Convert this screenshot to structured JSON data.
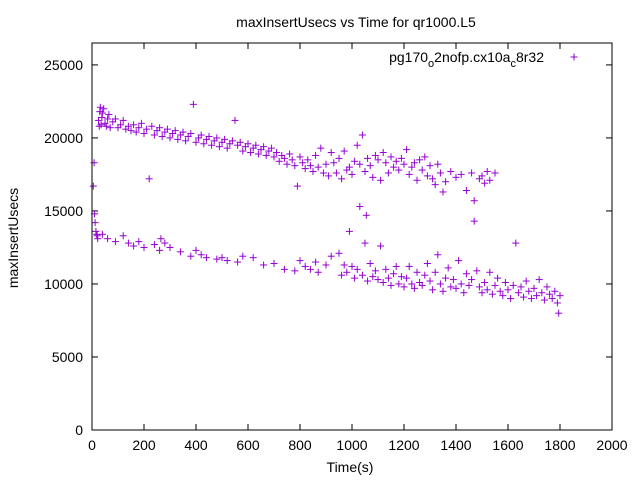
{
  "chart_data": {
    "type": "scatter",
    "title": "maxInsertUsecs vs Time for qr1000.L5",
    "xlabel": "Time(s)",
    "ylabel": "maxInsertUsecs",
    "xlim": [
      0,
      2000
    ],
    "ylim": [
      0,
      26500
    ],
    "x_ticks": [
      "0",
      "200",
      "400",
      "600",
      "800",
      "1000",
      "1200",
      "1400",
      "1600",
      "1800",
      "2000"
    ],
    "y_ticks": [
      "0",
      "5000",
      "10000",
      "15000",
      "20000",
      "25000"
    ],
    "grid": false,
    "legend_position": "top-right",
    "series": [
      {
        "name": "pg170_o2nofp.cx10a_c8r32",
        "legend_parts": {
          "a": "pg170",
          "b": "o",
          "c": "2nofp.cx10a",
          "d": "c",
          "e": "8r32"
        },
        "color": "#9400d3",
        "marker": "plus",
        "points": [
          [
            5,
            16700
          ],
          [
            8,
            18300
          ],
          [
            10,
            14800
          ],
          [
            12,
            14200
          ],
          [
            15,
            13600
          ],
          [
            18,
            13400
          ],
          [
            20,
            13300
          ],
          [
            22,
            13100
          ],
          [
            25,
            21200
          ],
          [
            28,
            20800
          ],
          [
            30,
            21800
          ],
          [
            32,
            22100
          ],
          [
            35,
            20900
          ],
          [
            38,
            21400
          ],
          [
            40,
            21700
          ],
          [
            45,
            22000
          ],
          [
            50,
            21000
          ],
          [
            55,
            20800
          ],
          [
            60,
            21300
          ],
          [
            65,
            21600
          ],
          [
            70,
            20700
          ],
          [
            80,
            21100
          ],
          [
            90,
            21300
          ],
          [
            100,
            20700
          ],
          [
            110,
            20900
          ],
          [
            120,
            21200
          ],
          [
            130,
            20600
          ],
          [
            140,
            20800
          ],
          [
            150,
            20500
          ],
          [
            160,
            20900
          ],
          [
            170,
            20400
          ],
          [
            180,
            20700
          ],
          [
            190,
            21000
          ],
          [
            200,
            20300
          ],
          [
            210,
            20600
          ],
          [
            220,
            17200
          ],
          [
            230,
            20800
          ],
          [
            240,
            20200
          ],
          [
            250,
            20500
          ],
          [
            260,
            20700
          ],
          [
            270,
            20100
          ],
          [
            280,
            20400
          ],
          [
            290,
            20600
          ],
          [
            300,
            20000
          ],
          [
            310,
            20300
          ],
          [
            320,
            20500
          ],
          [
            330,
            19900
          ],
          [
            340,
            20200
          ],
          [
            350,
            20400
          ],
          [
            360,
            19800
          ],
          [
            370,
            20100
          ],
          [
            380,
            20300
          ],
          [
            390,
            22300
          ],
          [
            400,
            19700
          ],
          [
            410,
            20000
          ],
          [
            420,
            20200
          ],
          [
            430,
            19600
          ],
          [
            440,
            19900
          ],
          [
            450,
            20100
          ],
          [
            460,
            19500
          ],
          [
            470,
            19800
          ],
          [
            480,
            20000
          ],
          [
            490,
            19400
          ],
          [
            500,
            19700
          ],
          [
            510,
            19900
          ],
          [
            520,
            19300
          ],
          [
            530,
            19600
          ],
          [
            540,
            19800
          ],
          [
            550,
            21200
          ],
          [
            560,
            19500
          ],
          [
            570,
            19700
          ],
          [
            580,
            19100
          ],
          [
            590,
            19400
          ],
          [
            600,
            19600
          ],
          [
            610,
            19000
          ],
          [
            620,
            19300
          ],
          [
            630,
            19500
          ],
          [
            640,
            18900
          ],
          [
            650,
            19200
          ],
          [
            660,
            19400
          ],
          [
            670,
            18800
          ],
          [
            680,
            19100
          ],
          [
            690,
            19300
          ],
          [
            700,
            18700
          ],
          [
            710,
            19000
          ],
          [
            720,
            18400
          ],
          [
            730,
            18800
          ],
          [
            740,
            18600
          ],
          [
            750,
            18200
          ],
          [
            760,
            18900
          ],
          [
            770,
            18500
          ],
          [
            780,
            18100
          ],
          [
            790,
            16700
          ],
          [
            800,
            18700
          ],
          [
            810,
            18300
          ],
          [
            820,
            17900
          ],
          [
            830,
            18500
          ],
          [
            840,
            18100
          ],
          [
            850,
            17700
          ],
          [
            860,
            18800
          ],
          [
            870,
            18000
          ],
          [
            880,
            19300
          ],
          [
            890,
            17600
          ],
          [
            900,
            18200
          ],
          [
            910,
            17400
          ],
          [
            920,
            19000
          ],
          [
            930,
            18300
          ],
          [
            940,
            17600
          ],
          [
            950,
            18600
          ],
          [
            960,
            17200
          ],
          [
            970,
            19100
          ],
          [
            980,
            17800
          ],
          [
            990,
            18000
          ],
          [
            1000,
            17500
          ],
          [
            1010,
            18400
          ],
          [
            1020,
            19500
          ],
          [
            1030,
            18200
          ],
          [
            1040,
            20200
          ],
          [
            1050,
            17700
          ],
          [
            1060,
            18600
          ],
          [
            1070,
            18100
          ],
          [
            1080,
            17300
          ],
          [
            1090,
            18800
          ],
          [
            1100,
            18500
          ],
          [
            1110,
            17100
          ],
          [
            1120,
            19000
          ],
          [
            1130,
            18300
          ],
          [
            1140,
            17600
          ],
          [
            1150,
            18700
          ],
          [
            1160,
            18000
          ],
          [
            1170,
            18400
          ],
          [
            1180,
            17800
          ],
          [
            1190,
            18600
          ],
          [
            1200,
            18200
          ],
          [
            1210,
            19200
          ],
          [
            1220,
            17500
          ],
          [
            1230,
            18000
          ],
          [
            1240,
            18300
          ],
          [
            1250,
            17100
          ],
          [
            1260,
            18500
          ],
          [
            1270,
            17800
          ],
          [
            1280,
            18700
          ],
          [
            1290,
            17400
          ],
          [
            1300,
            18100
          ],
          [
            1310,
            17200
          ],
          [
            1320,
            16800
          ],
          [
            1330,
            18200
          ],
          [
            1340,
            17600
          ],
          [
            1350,
            16300
          ],
          [
            1360,
            17000
          ],
          [
            1380,
            17700
          ],
          [
            1400,
            17300
          ],
          [
            1420,
            17500
          ],
          [
            1440,
            16400
          ],
          [
            1460,
            17600
          ],
          [
            1470,
            15700
          ],
          [
            1490,
            17200
          ],
          [
            1500,
            17400
          ],
          [
            1510,
            16900
          ],
          [
            1520,
            17700
          ],
          [
            1530,
            17100
          ],
          [
            1550,
            17600
          ],
          [
            40,
            13400
          ],
          [
            60,
            13100
          ],
          [
            90,
            12900
          ],
          [
            120,
            13300
          ],
          [
            140,
            12800
          ],
          [
            160,
            12600
          ],
          [
            180,
            12900
          ],
          [
            200,
            12500
          ],
          [
            240,
            12700
          ],
          [
            260,
            12300
          ],
          [
            265,
            13100
          ],
          [
            280,
            12800
          ],
          [
            300,
            12500
          ],
          [
            340,
            12200
          ],
          [
            380,
            11900
          ],
          [
            400,
            12300
          ],
          [
            420,
            12000
          ],
          [
            440,
            11800
          ],
          [
            480,
            11700
          ],
          [
            500,
            11800
          ],
          [
            520,
            11600
          ],
          [
            560,
            11500
          ],
          [
            580,
            11900
          ],
          [
            620,
            11800
          ],
          [
            660,
            11300
          ],
          [
            700,
            11400
          ],
          [
            740,
            11000
          ],
          [
            780,
            10900
          ],
          [
            800,
            11600
          ],
          [
            820,
            11200
          ],
          [
            840,
            11000
          ],
          [
            860,
            11500
          ],
          [
            870,
            10800
          ],
          [
            900,
            11300
          ],
          [
            920,
            11900
          ],
          [
            950,
            12100
          ],
          [
            960,
            10600
          ],
          [
            970,
            11300
          ],
          [
            980,
            10800
          ],
          [
            990,
            13600
          ],
          [
            1000,
            11200
          ],
          [
            1010,
            10400
          ],
          [
            1020,
            11000
          ],
          [
            1030,
            15300
          ],
          [
            1040,
            10600
          ],
          [
            1050,
            12800
          ],
          [
            1055,
            14700
          ],
          [
            1060,
            10200
          ],
          [
            1070,
            11400
          ],
          [
            1080,
            10500
          ],
          [
            1090,
            10900
          ],
          [
            1100,
            10300
          ],
          [
            1110,
            12600
          ],
          [
            1120,
            10100
          ],
          [
            1130,
            11000
          ],
          [
            1140,
            10400
          ],
          [
            1150,
            9900
          ],
          [
            1160,
            10700
          ],
          [
            1170,
            11200
          ],
          [
            1180,
            10000
          ],
          [
            1190,
            10500
          ],
          [
            1200,
            9800
          ],
          [
            1210,
            10400
          ],
          [
            1220,
            11200
          ],
          [
            1230,
            10000
          ],
          [
            1240,
            9700
          ],
          [
            1250,
            10800
          ],
          [
            1260,
            10100
          ],
          [
            1270,
            9900
          ],
          [
            1280,
            10600
          ],
          [
            1290,
            11400
          ],
          [
            1300,
            10200
          ],
          [
            1310,
            9600
          ],
          [
            1320,
            10800
          ],
          [
            1330,
            12000
          ],
          [
            1340,
            10000
          ],
          [
            1350,
            9500
          ],
          [
            1360,
            10400
          ],
          [
            1370,
            11100
          ],
          [
            1380,
            9800
          ],
          [
            1390,
            10300
          ],
          [
            1400,
            9700
          ],
          [
            1410,
            11600
          ],
          [
            1420,
            10000
          ],
          [
            1430,
            9400
          ],
          [
            1440,
            10700
          ],
          [
            1450,
            9900
          ],
          [
            1460,
            10300
          ],
          [
            1470,
            14300
          ],
          [
            1480,
            10900
          ],
          [
            1490,
            9800
          ],
          [
            1500,
            9400
          ],
          [
            1510,
            10100
          ],
          [
            1520,
            9600
          ],
          [
            1530,
            10800
          ],
          [
            1540,
            9300
          ],
          [
            1550,
            9900
          ],
          [
            1560,
            10400
          ],
          [
            1570,
            9500
          ],
          [
            1580,
            9200
          ],
          [
            1590,
            10100
          ],
          [
            1600,
            9600
          ],
          [
            1610,
            9000
          ],
          [
            1620,
            9900
          ],
          [
            1630,
            12800
          ],
          [
            1640,
            9400
          ],
          [
            1650,
            9800
          ],
          [
            1660,
            9100
          ],
          [
            1670,
            10200
          ],
          [
            1680,
            9500
          ],
          [
            1690,
            9000
          ],
          [
            1700,
            9700
          ],
          [
            1710,
            9200
          ],
          [
            1720,
            10300
          ],
          [
            1730,
            9400
          ],
          [
            1740,
            8900
          ],
          [
            1750,
            9800
          ],
          [
            1760,
            9300
          ],
          [
            1770,
            9000
          ],
          [
            1780,
            9500
          ],
          [
            1790,
            8700
          ],
          [
            1795,
            8000
          ],
          [
            1800,
            9200
          ]
        ]
      }
    ]
  }
}
